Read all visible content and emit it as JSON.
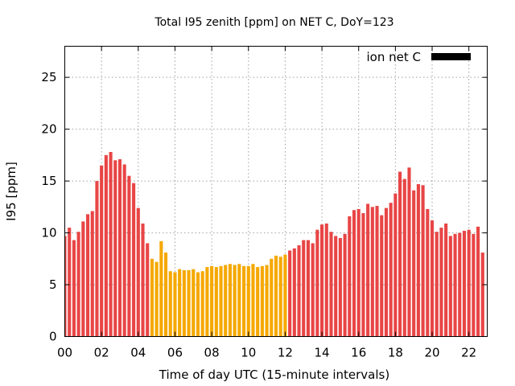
{
  "chart_data": {
    "type": "bar",
    "title": "Total I95 zenith [ppm] on NET C, DoY=123",
    "xlabel": "Time of day UTC (15-minute intervals)",
    "ylabel": "I95 [ppm]",
    "xlim": [
      0,
      23
    ],
    "ylim": [
      0,
      28
    ],
    "x_ticks": [
      "00",
      "02",
      "04",
      "06",
      "08",
      "10",
      "12",
      "14",
      "16",
      "18",
      "20",
      "22"
    ],
    "y_ticks": [
      "0",
      "5",
      "10",
      "15",
      "20",
      "25"
    ],
    "grid": true,
    "legend": {
      "position": "top-right",
      "entries": [
        {
          "label": "ion net C",
          "color": "#000000"
        }
      ]
    },
    "bar_width_hours": 0.18,
    "colors": {
      "default": "#e84545",
      "highlight": "#f5a800"
    },
    "highlight_range_hours": [
      4.75,
      12.0
    ],
    "x_hours": [
      0.0,
      0.25,
      0.5,
      0.75,
      1.0,
      1.25,
      1.5,
      1.75,
      2.0,
      2.25,
      2.5,
      2.75,
      3.0,
      3.25,
      3.5,
      3.75,
      4.0,
      4.25,
      4.5,
      4.75,
      5.0,
      5.25,
      5.5,
      5.75,
      6.0,
      6.25,
      6.5,
      6.75,
      7.0,
      7.25,
      7.5,
      7.75,
      8.0,
      8.25,
      8.5,
      8.75,
      9.0,
      9.25,
      9.5,
      9.75,
      10.0,
      10.25,
      10.5,
      10.75,
      11.0,
      11.25,
      11.5,
      11.75,
      12.0,
      12.25,
      12.5,
      12.75,
      13.0,
      13.25,
      13.5,
      13.75,
      14.0,
      14.25,
      14.5,
      14.75,
      15.0,
      15.25,
      15.5,
      15.75,
      16.0,
      16.25,
      16.5,
      16.75,
      17.0,
      17.25,
      17.5,
      17.75,
      18.0,
      18.25,
      18.5,
      18.75,
      19.0,
      19.25,
      19.5,
      19.75,
      20.0,
      20.25,
      20.5,
      20.75,
      21.0,
      21.25,
      21.5,
      21.75,
      22.0,
      22.25,
      22.5,
      22.75
    ],
    "values": [
      9.7,
      10.5,
      9.3,
      10.1,
      11.1,
      11.8,
      12.1,
      15.0,
      16.5,
      17.5,
      17.8,
      17.0,
      17.1,
      16.6,
      15.5,
      14.8,
      12.4,
      10.9,
      9.0,
      7.5,
      7.2,
      9.2,
      8.1,
      6.3,
      6.2,
      6.5,
      6.4,
      6.4,
      6.5,
      6.2,
      6.3,
      6.7,
      6.8,
      6.7,
      6.8,
      6.9,
      7.0,
      6.9,
      7.0,
      6.8,
      6.8,
      7.0,
      6.7,
      6.8,
      6.9,
      7.5,
      7.8,
      7.7,
      7.9,
      8.3,
      8.5,
      8.8,
      9.3,
      9.3,
      9.0,
      10.3,
      10.8,
      10.9,
      10.1,
      9.7,
      9.5,
      9.9,
      11.6,
      12.2,
      12.3,
      11.9,
      12.8,
      12.5,
      12.6,
      11.7,
      12.4,
      12.9,
      13.8,
      15.9,
      15.2,
      16.3,
      14.1,
      14.7,
      14.6,
      12.3,
      11.2,
      10.1,
      10.5,
      10.9,
      9.7,
      9.9,
      10.0,
      10.2,
      10.3,
      9.9,
      10.6,
      8.1
    ]
  }
}
